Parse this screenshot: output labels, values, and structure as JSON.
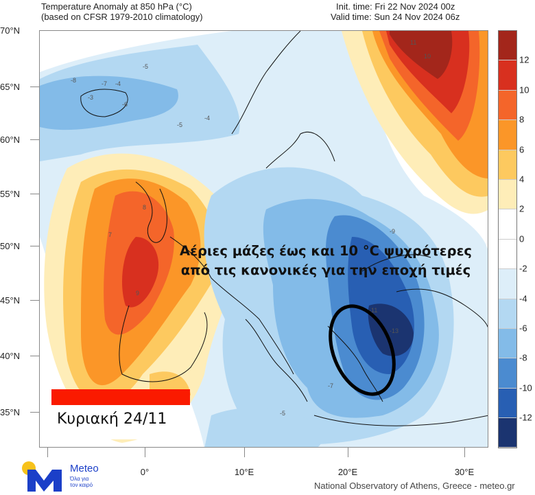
{
  "header": {
    "title_line1": "Temperature Anomaly at 850 hPa (°C)",
    "title_line2": "(based on CFSR 1979-2010 climatology)",
    "init_time": "Init. time: Fri 22 Nov 2024 00z",
    "valid_time": "Valid time: Sun 24 Nov 2024 06z"
  },
  "axes": {
    "lat_labels": [
      "70°N",
      "65°N",
      "60°N",
      "55°N",
      "50°N",
      "45°N",
      "40°N",
      "35°N"
    ],
    "lon_labels": [
      "0°",
      "10°E",
      "20°E",
      "30°E"
    ]
  },
  "colorbar": {
    "labels": [
      "12",
      "10",
      "8",
      "6",
      "4",
      "2",
      "0",
      "-2",
      "-4",
      "-6",
      "-8",
      "-10",
      "-12"
    ],
    "colors": [
      "#a3261b",
      "#d8301f",
      "#f4652a",
      "#fb9628",
      "#fdc95f",
      "#feedb8",
      "#ffffff",
      "#ffffff",
      "#ddeef9",
      "#b3d8f2",
      "#83bbe8",
      "#4b8bd0",
      "#285fb3",
      "#1b3470"
    ]
  },
  "annotation": {
    "line1": "Αέριες μάζες έως και 10 °C ψυχρότερες",
    "line2": "από τις κανονικές για την εποχή τιμές"
  },
  "day_label": "Κυριακή 24/11",
  "logo": {
    "brand": "Meteo",
    "tagline1": "Όλα για",
    "tagline2": "τον καιρό"
  },
  "credit": "National Observatory of Athens, Greece - meteo.gr",
  "contour_labels": [
    "-3",
    "-4",
    "-5",
    "-6",
    "-7",
    "-8",
    "-5",
    "-4",
    "8",
    "9",
    "7",
    "10",
    "11",
    "-9",
    "-13",
    "-11",
    "-7",
    "-5"
  ]
}
